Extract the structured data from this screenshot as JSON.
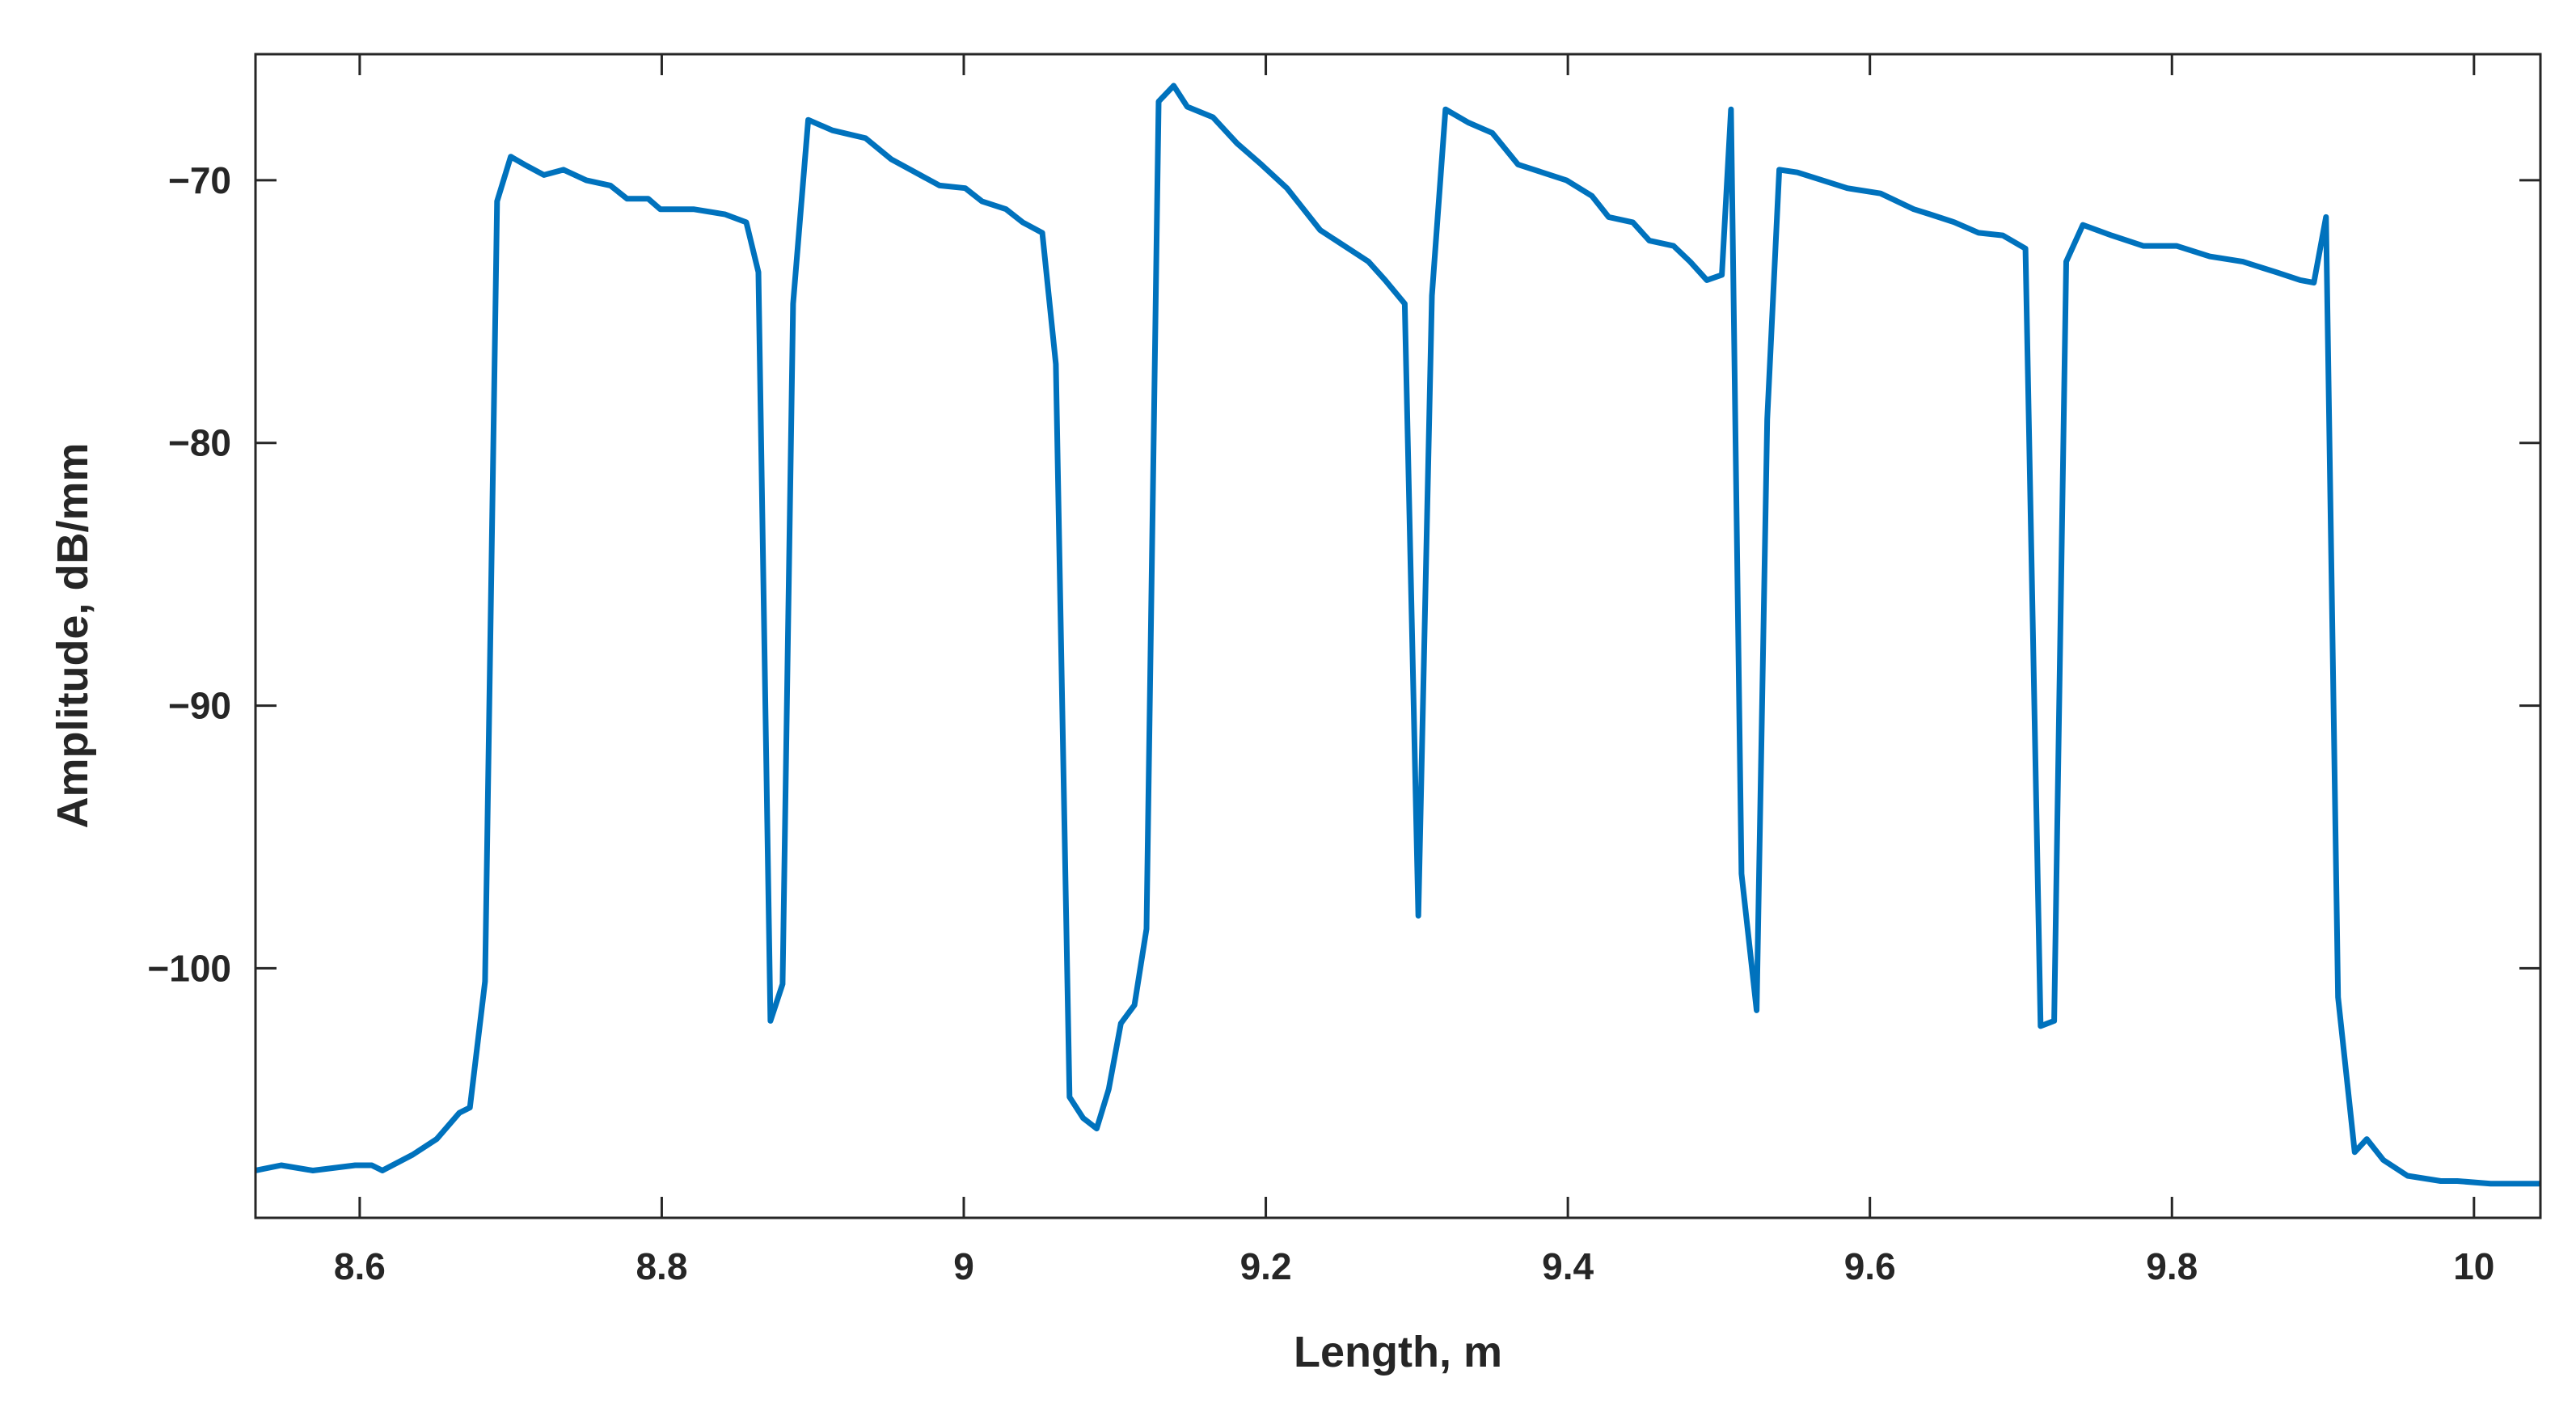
{
  "chart_data": {
    "type": "line",
    "xlabel": "Length, m",
    "ylabel": "Amplitude, dB/mm",
    "xlim": [
      8.531,
      10.044
    ],
    "ylim": [
      -109.5,
      -65.2
    ],
    "xticks": [
      8.6,
      8.8,
      9,
      9.2,
      9.4,
      9.6,
      9.8,
      10
    ],
    "yticks": [
      {
        "value": -100,
        "label": "−100"
      },
      {
        "value": -90,
        "label": "−90"
      },
      {
        "value": -80,
        "label": "−80"
      },
      {
        "value": -70,
        "label": "−70"
      }
    ],
    "series": [
      {
        "color": "#0072bd",
        "x": [
          8.531,
          8.548,
          8.569,
          8.597,
          8.608,
          8.615,
          8.635,
          8.651,
          8.666,
          8.673,
          8.683,
          8.691,
          8.7,
          8.709,
          8.722,
          8.735,
          8.75,
          8.766,
          8.777,
          8.791,
          8.799,
          8.821,
          8.842,
          8.856,
          8.864,
          8.872,
          8.88,
          8.887,
          8.897,
          8.913,
          8.935,
          8.952,
          8.968,
          8.984,
          9.001,
          9.012,
          9.028,
          9.039,
          9.052,
          9.061,
          9.07,
          9.079,
          9.088,
          9.096,
          9.104,
          9.113,
          9.121,
          9.129,
          9.139,
          9.148,
          9.165,
          9.181,
          9.197,
          9.214,
          9.225,
          9.236,
          9.252,
          9.268,
          9.279,
          9.292,
          9.301,
          9.31,
          9.319,
          9.334,
          9.35,
          9.367,
          9.383,
          9.399,
          9.416,
          9.427,
          9.443,
          9.454,
          9.47,
          9.481,
          9.492,
          9.502,
          9.508,
          9.515,
          9.525,
          9.532,
          9.54,
          9.552,
          9.563,
          9.585,
          9.607,
          9.629,
          9.64,
          9.656,
          9.672,
          9.688,
          9.703,
          9.713,
          9.722,
          9.73,
          9.741,
          9.76,
          9.781,
          9.803,
          9.825,
          9.847,
          9.869,
          9.885,
          9.894,
          9.902,
          9.91,
          9.921,
          9.929,
          9.94,
          9.956,
          9.978,
          9.989,
          10.011,
          10.044
        ],
        "values": [
          -107.7,
          -107.5,
          -107.7,
          -107.5,
          -107.5,
          -107.7,
          -107.1,
          -106.5,
          -105.5,
          -105.3,
          -100.5,
          -70.8,
          -69.1,
          -69.4,
          -69.8,
          -69.6,
          -70.0,
          -70.2,
          -70.7,
          -70.7,
          -71.1,
          -71.1,
          -71.3,
          -71.6,
          -73.5,
          -102.0,
          -100.6,
          -74.7,
          -67.7,
          -68.1,
          -68.4,
          -69.2,
          -69.7,
          -70.2,
          -70.3,
          -70.8,
          -71.1,
          -71.6,
          -72.0,
          -77.0,
          -104.9,
          -105.7,
          -106.1,
          -104.6,
          -102.1,
          -101.4,
          -98.5,
          -67.0,
          -66.4,
          -67.2,
          -67.6,
          -68.6,
          -69.4,
          -70.3,
          -71.1,
          -71.9,
          -72.5,
          -73.1,
          -73.8,
          -74.7,
          -98.0,
          -74.4,
          -67.3,
          -67.8,
          -68.2,
          -69.4,
          -69.7,
          -70.0,
          -70.6,
          -71.4,
          -71.6,
          -72.3,
          -72.5,
          -73.1,
          -73.8,
          -73.6,
          -67.3,
          -96.4,
          -101.6,
          -79.1,
          -69.6,
          -69.7,
          -69.9,
          -70.3,
          -70.5,
          -71.1,
          -71.3,
          -71.6,
          -72.0,
          -72.1,
          -72.6,
          -102.2,
          -102.0,
          -73.1,
          -71.7,
          -72.1,
          -72.5,
          -72.5,
          -72.9,
          -73.1,
          -73.5,
          -73.8,
          -73.9,
          -71.4,
          -101.1,
          -107.0,
          -106.5,
          -107.3,
          -107.9,
          -108.1,
          -108.1,
          -108.2,
          -108.2
        ]
      }
    ]
  }
}
